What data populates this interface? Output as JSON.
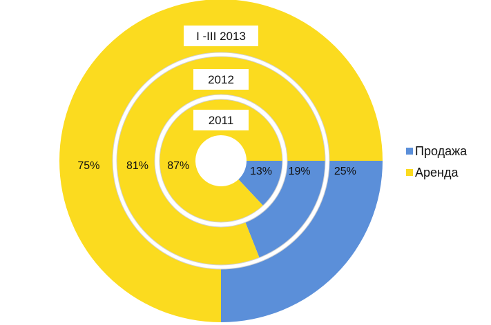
{
  "chart_data": {
    "type": "doughnut",
    "series_names": [
      "Продажа",
      "Аренда"
    ],
    "colors": {
      "Продажа": "#5B8FD9",
      "Аренда": "#FBDB1F"
    },
    "rings": [
      {
        "name": "2011",
        "values": [
          13,
          87
        ],
        "labels": [
          "13%",
          "87%"
        ]
      },
      {
        "name": "2012",
        "values": [
          19,
          81
        ],
        "labels": [
          "19%",
          "81%"
        ]
      },
      {
        "name": "I -III 2013",
        "values": [
          25,
          75
        ],
        "labels": [
          "25%",
          "75%"
        ]
      }
    ],
    "legend_position": "right"
  }
}
